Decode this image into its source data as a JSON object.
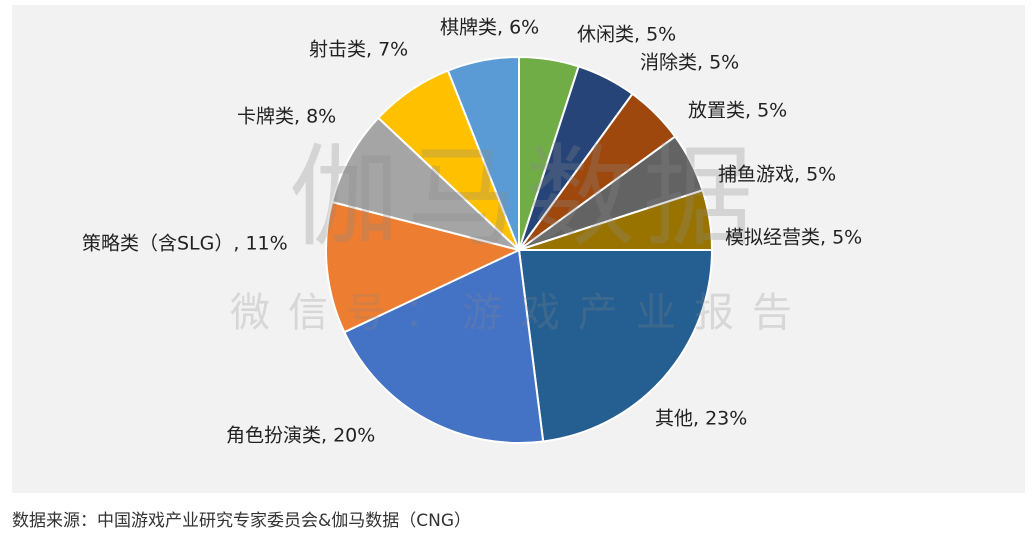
{
  "chart_data": {
    "type": "pie",
    "labels": [
      "休闲类, 5%",
      "消除类, 5%",
      "放置类, 5%",
      "捕鱼游戏, 5%",
      "模拟经营类, 5%",
      "其他, 23%",
      "角色扮演类, 20%",
      "策略类（含SLG）, 11%",
      "卡牌类, 8%",
      "射击类, 7%",
      "棋牌类, 6%"
    ],
    "values": [
      5,
      5,
      5,
      5,
      5,
      23,
      20,
      11,
      8,
      7,
      6
    ],
    "colors": [
      "#70ad47",
      "#264478",
      "#9e480e",
      "#636363",
      "#997300",
      "#255e91",
      "#4472c4",
      "#ed7d31",
      "#a5a5a5",
      "#ffc000",
      "#5b9bd5"
    ],
    "watermark": "伽马数据",
    "watermark_sub": "微信号：游戏产业报告",
    "source": "数据来源：中国游戏产业研究专家委员会&伽马数据（CNG）"
  }
}
